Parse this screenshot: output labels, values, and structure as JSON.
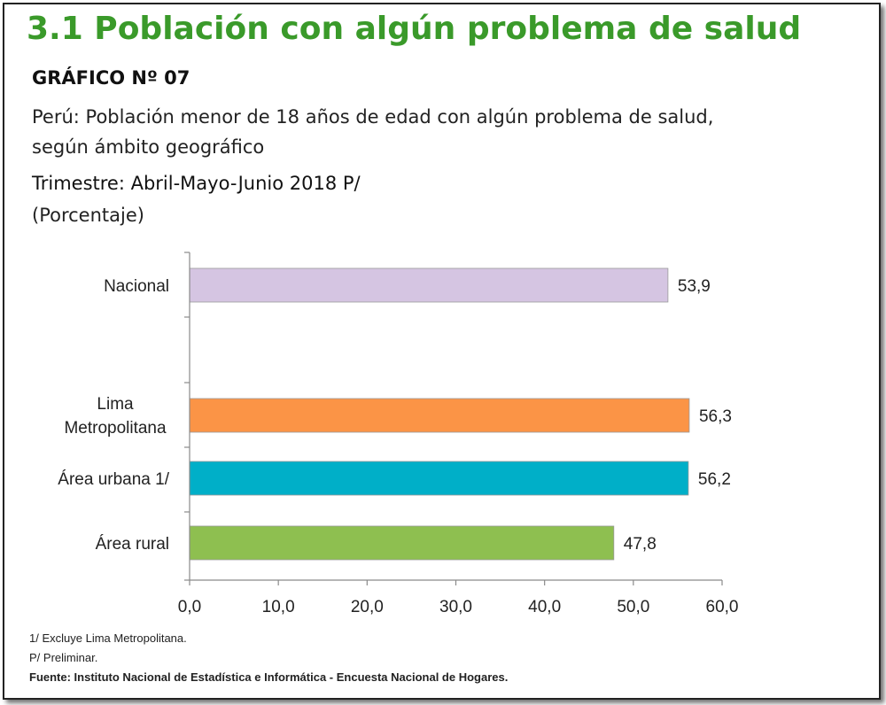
{
  "header": {
    "section_title": "3.1  Población con algún problema de salud",
    "figure_label": "GRÁFICO Nº 07",
    "subtitle_line1": "Perú: Población menor de 18 años de edad con algún problema de salud,",
    "subtitle_line2": "según ámbito geográfico",
    "period": "Trimestre: Abril-Mayo-Junio 2018 P/",
    "unit": "(Porcentaje)"
  },
  "chart_data": {
    "type": "bar",
    "orientation": "horizontal",
    "categories": [
      "Nacional",
      "Lima Metropolitana",
      "Área urbana 1/",
      "Área rural"
    ],
    "values": [
      53.9,
      56.3,
      56.2,
      47.8
    ],
    "value_labels": [
      "53,9",
      "56,3",
      "56,2",
      "47,8"
    ],
    "colors": [
      "#d5c5e2",
      "#fb9446",
      "#00afc8",
      "#8ebf50"
    ],
    "xlim": [
      0,
      60
    ],
    "xticks": [
      "0,0",
      "10,0",
      "20,0",
      "30,0",
      "40,0",
      "50,0",
      "60,0"
    ],
    "grid": false,
    "legend": false
  },
  "footer": {
    "note1": "1/ Excluye Lima Metropolitana.",
    "note2": "P/ Preliminar.",
    "source": "Fuente: Instituto Nacional de Estadística e Informática - Encuesta Nacional de Hogares."
  }
}
